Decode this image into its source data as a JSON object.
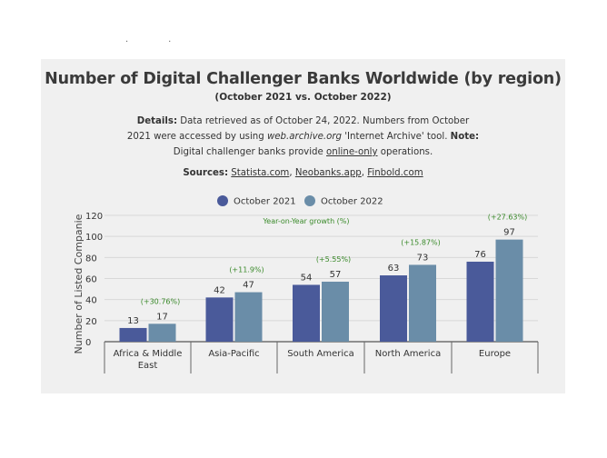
{
  "header": {
    "title": "Number of Digital Challenger Banks Worldwide (by region)",
    "subtitle": "(October 2021 vs. October 2022)",
    "details_label": "Details:",
    "details_line1": " Data retrieved as of October 24, 2022. Numbers from October",
    "details_line2_a": "2021 were accessed by using ",
    "details_line2_em": "web.archive.org",
    "details_line2_b": " 'Internet Archive' tool. ",
    "details_note_label": "Note:",
    "details_line3_a": "Digital challenger banks provide ",
    "details_line3_u": "online-only",
    "details_line3_b": " operations.",
    "sources_label": "Sources:",
    "sources_list": [
      "Statista.com",
      "Neobanks.app",
      "Finbold.com"
    ]
  },
  "chart_data": {
    "type": "bar",
    "categories": [
      "Africa & Middle East",
      "Asia-Pacific",
      "South America",
      "North America",
      "Europe"
    ],
    "series": [
      {
        "name": "October 2021",
        "values": [
          13,
          42,
          54,
          63,
          76
        ],
        "color": "#4a5a9a"
      },
      {
        "name": "October 2022",
        "values": [
          17,
          47,
          57,
          73,
          97
        ],
        "color": "#6a8da8"
      }
    ],
    "growth_labels": [
      "(+30.76%)",
      "(+11.9%)",
      "(+5.55%)",
      "(+15.87%)",
      "(+27.63%)"
    ],
    "growth_title": "Year-on-Year growth (%)",
    "growth_color": "#3a8a2a",
    "ylabel": "Number of Listed Companie",
    "ylim": [
      0,
      120
    ],
    "yticks": [
      0,
      20,
      40,
      60,
      80,
      100,
      120
    ],
    "grid": true,
    "legend_position": "top-center"
  }
}
